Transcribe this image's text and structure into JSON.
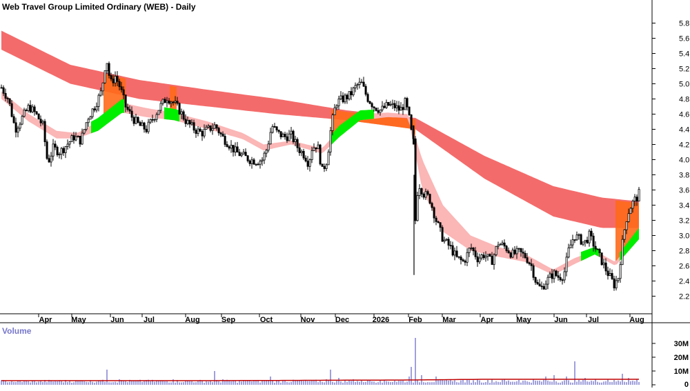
{
  "title": "Web Travel Group Limited Ordinary (WEB) - Daily",
  "volume_label": "Volume",
  "colors": {
    "candle": "#000000",
    "long_band": "#f46b6b",
    "short_band": "#fbb6b6",
    "bull_cross": "#00ee00",
    "bear_cross": "#ff6a1a",
    "volume_bar": "#7777cc",
    "volume_ma": "#c00000"
  },
  "chart_data": [
    {
      "type": "candlestick",
      "name": "price",
      "x_tick_labels": [
        "Apr",
        "May",
        "Jun",
        "Jul",
        "Aug",
        "Sep",
        "Oct",
        "Nov",
        "Dec",
        "2026",
        "Feb",
        "Mar",
        "Apr",
        "May",
        "Jun",
        "Jul",
        "Aug"
      ],
      "y_ticks": [
        2.2,
        2.4,
        2.6,
        2.8,
        3.0,
        3.2,
        3.4,
        3.6,
        3.8,
        4.0,
        4.2,
        4.4,
        4.6,
        4.8,
        5.0,
        5.2,
        5.4,
        5.6,
        5.8
      ],
      "ylim": [
        2.05,
        5.95
      ],
      "grid": false,
      "overlays": [
        "long-term moving average ribbon",
        "short-term moving average ribbon"
      ],
      "close_path": [
        [
          0,
          4.95
        ],
        [
          10,
          4.8
        ],
        [
          20,
          4.4
        ],
        [
          30,
          4.55
        ],
        [
          40,
          4.7
        ],
        [
          50,
          4.6
        ],
        [
          60,
          4.45
        ],
        [
          67,
          3.95
        ],
        [
          75,
          4.15
        ],
        [
          85,
          4.1
        ],
        [
          95,
          4.2
        ],
        [
          105,
          4.3
        ],
        [
          115,
          4.25
        ],
        [
          125,
          4.55
        ],
        [
          135,
          4.7
        ],
        [
          145,
          4.9
        ],
        [
          152,
          5.35
        ],
        [
          158,
          5.0
        ],
        [
          165,
          5.1
        ],
        [
          172,
          4.95
        ],
        [
          180,
          4.7
        ],
        [
          190,
          4.55
        ],
        [
          200,
          4.45
        ],
        [
          210,
          4.4
        ],
        [
          220,
          4.55
        ],
        [
          230,
          4.7
        ],
        [
          240,
          4.82
        ],
        [
          250,
          4.75
        ],
        [
          258,
          4.65
        ],
        [
          268,
          4.5
        ],
        [
          280,
          4.4
        ],
        [
          290,
          4.35
        ],
        [
          300,
          4.4
        ],
        [
          310,
          4.45
        ],
        [
          320,
          4.3
        ],
        [
          330,
          4.2
        ],
        [
          340,
          4.1
        ],
        [
          350,
          4.05
        ],
        [
          360,
          4.0
        ],
        [
          370,
          3.98
        ],
        [
          378,
          4.0
        ],
        [
          385,
          4.15
        ],
        [
          392,
          4.45
        ],
        [
          400,
          4.35
        ],
        [
          410,
          4.3
        ],
        [
          420,
          4.32
        ],
        [
          430,
          4.15
        ],
        [
          440,
          4.05
        ],
        [
          445,
          3.95
        ],
        [
          450,
          4.15
        ],
        [
          458,
          4.2
        ],
        [
          465,
          3.85
        ],
        [
          472,
          4.0
        ],
        [
          478,
          4.45
        ],
        [
          485,
          4.75
        ],
        [
          495,
          4.8
        ],
        [
          505,
          4.85
        ],
        [
          515,
          4.98
        ],
        [
          522,
          5.0
        ],
        [
          530,
          4.82
        ],
        [
          540,
          4.7
        ],
        [
          550,
          4.65
        ],
        [
          560,
          4.72
        ],
        [
          570,
          4.7
        ],
        [
          578,
          4.65
        ],
        [
          585,
          4.75
        ],
        [
          590,
          4.6
        ],
        [
          595,
          4.3
        ],
        [
          598,
          4.2
        ],
        [
          600,
          3.2
        ],
        [
          604,
          3.7
        ],
        [
          612,
          3.55
        ],
        [
          620,
          3.5
        ],
        [
          630,
          3.2
        ],
        [
          640,
          2.95
        ],
        [
          650,
          2.85
        ],
        [
          660,
          2.7
        ],
        [
          670,
          2.65
        ],
        [
          680,
          2.85
        ],
        [
          690,
          2.7
        ],
        [
          700,
          2.75
        ],
        [
          710,
          2.65
        ],
        [
          720,
          2.9
        ],
        [
          730,
          2.85
        ],
        [
          740,
          2.75
        ],
        [
          750,
          2.78
        ],
        [
          760,
          2.72
        ],
        [
          768,
          2.6
        ],
        [
          776,
          2.35
        ],
        [
          782,
          2.3
        ],
        [
          790,
          2.4
        ],
        [
          800,
          2.5
        ],
        [
          808,
          2.45
        ],
        [
          815,
          2.48
        ],
        [
          822,
          2.8
        ],
        [
          830,
          3.0
        ],
        [
          838,
          2.95
        ],
        [
          845,
          2.9
        ],
        [
          852,
          3.0
        ],
        [
          860,
          2.85
        ],
        [
          868,
          2.7
        ],
        [
          876,
          2.55
        ],
        [
          882,
          2.45
        ],
        [
          888,
          2.35
        ],
        [
          894,
          2.45
        ],
        [
          900,
          2.9
        ],
        [
          905,
          3.2
        ],
        [
          910,
          3.35
        ],
        [
          916,
          3.45
        ],
        [
          921,
          3.5
        ],
        [
          924,
          3.55
        ]
      ],
      "long_ma_upper": [
        [
          0,
          5.7
        ],
        [
          100,
          5.25
        ],
        [
          200,
          5.05
        ],
        [
          300,
          4.92
        ],
        [
          400,
          4.8
        ],
        [
          500,
          4.65
        ],
        [
          600,
          4.55
        ],
        [
          700,
          4.05
        ],
        [
          800,
          3.65
        ],
        [
          870,
          3.5
        ],
        [
          924,
          3.45
        ]
      ],
      "long_ma_lower": [
        [
          0,
          5.45
        ],
        [
          100,
          5.0
        ],
        [
          200,
          4.8
        ],
        [
          300,
          4.7
        ],
        [
          400,
          4.6
        ],
        [
          500,
          4.52
        ],
        [
          600,
          4.4
        ],
        [
          700,
          3.75
        ],
        [
          800,
          3.25
        ],
        [
          870,
          3.1
        ],
        [
          924,
          3.1
        ]
      ],
      "short_ma_upper": [
        [
          0,
          4.9
        ],
        [
          40,
          4.6
        ],
        [
          80,
          4.38
        ],
        [
          110,
          4.35
        ],
        [
          140,
          4.5
        ],
        [
          175,
          4.75
        ],
        [
          210,
          4.68
        ],
        [
          250,
          4.62
        ],
        [
          300,
          4.5
        ],
        [
          350,
          4.35
        ],
        [
          380,
          4.2
        ],
        [
          420,
          4.25
        ],
        [
          465,
          4.15
        ],
        [
          490,
          4.4
        ],
        [
          520,
          4.6
        ],
        [
          560,
          4.62
        ],
        [
          590,
          4.6
        ],
        [
          610,
          4.0
        ],
        [
          640,
          3.4
        ],
        [
          680,
          3.0
        ],
        [
          720,
          2.85
        ],
        [
          760,
          2.75
        ],
        [
          800,
          2.55
        ],
        [
          830,
          2.7
        ],
        [
          860,
          2.8
        ],
        [
          890,
          2.65
        ],
        [
          924,
          3.05
        ]
      ],
      "short_ma_lower": [
        [
          0,
          4.8
        ],
        [
          40,
          4.5
        ],
        [
          80,
          4.28
        ],
        [
          110,
          4.28
        ],
        [
          140,
          4.38
        ],
        [
          175,
          4.62
        ],
        [
          210,
          4.56
        ],
        [
          250,
          4.52
        ],
        [
          300,
          4.4
        ],
        [
          350,
          4.27
        ],
        [
          380,
          4.12
        ],
        [
          420,
          4.2
        ],
        [
          465,
          4.08
        ],
        [
          490,
          4.3
        ],
        [
          520,
          4.52
        ],
        [
          560,
          4.56
        ],
        [
          590,
          4.55
        ],
        [
          610,
          3.6
        ],
        [
          640,
          3.05
        ],
        [
          680,
          2.8
        ],
        [
          720,
          2.72
        ],
        [
          760,
          2.65
        ],
        [
          800,
          2.48
        ],
        [
          830,
          2.62
        ],
        [
          860,
          2.75
        ],
        [
          890,
          2.6
        ],
        [
          924,
          2.95
        ]
      ]
    },
    {
      "type": "bar",
      "name": "volume",
      "y_tick_labels": [
        "0",
        "10M",
        "20M",
        "30M"
      ],
      "y_ticks": [
        0,
        10,
        20,
        30
      ],
      "ylim": [
        0,
        36
      ],
      "unit": "M",
      "values_m": [
        [
          5,
          3
        ],
        [
          20,
          2
        ],
        [
          40,
          2.5
        ],
        [
          60,
          2
        ],
        [
          80,
          2.5
        ],
        [
          100,
          3
        ],
        [
          120,
          2.5
        ],
        [
          140,
          3
        ],
        [
          152,
          11
        ],
        [
          170,
          4
        ],
        [
          190,
          3
        ],
        [
          210,
          3.5
        ],
        [
          230,
          3
        ],
        [
          250,
          4
        ],
        [
          270,
          3
        ],
        [
          290,
          3
        ],
        [
          310,
          10
        ],
        [
          320,
          4
        ],
        [
          340,
          3
        ],
        [
          360,
          3
        ],
        [
          380,
          3
        ],
        [
          390,
          6
        ],
        [
          410,
          3
        ],
        [
          430,
          3
        ],
        [
          450,
          3.5
        ],
        [
          470,
          4
        ],
        [
          478,
          11
        ],
        [
          490,
          5
        ],
        [
          510,
          4
        ],
        [
          530,
          3.5
        ],
        [
          550,
          3
        ],
        [
          570,
          3
        ],
        [
          590,
          6
        ],
        [
          595,
          13
        ],
        [
          600,
          34
        ],
        [
          610,
          7
        ],
        [
          630,
          6
        ],
        [
          650,
          4
        ],
        [
          670,
          4
        ],
        [
          690,
          4
        ],
        [
          710,
          4
        ],
        [
          730,
          4
        ],
        [
          750,
          3.5
        ],
        [
          770,
          4
        ],
        [
          790,
          6
        ],
        [
          800,
          7
        ],
        [
          820,
          6
        ],
        [
          830,
          17
        ],
        [
          845,
          5
        ],
        [
          860,
          4
        ],
        [
          880,
          4
        ],
        [
          900,
          8
        ],
        [
          910,
          5
        ],
        [
          920,
          4
        ]
      ],
      "ma_values_m": [
        [
          0,
          3
        ],
        [
          300,
          3
        ],
        [
          600,
          3.5
        ],
        [
          700,
          4
        ],
        [
          924,
          4
        ]
      ]
    }
  ]
}
